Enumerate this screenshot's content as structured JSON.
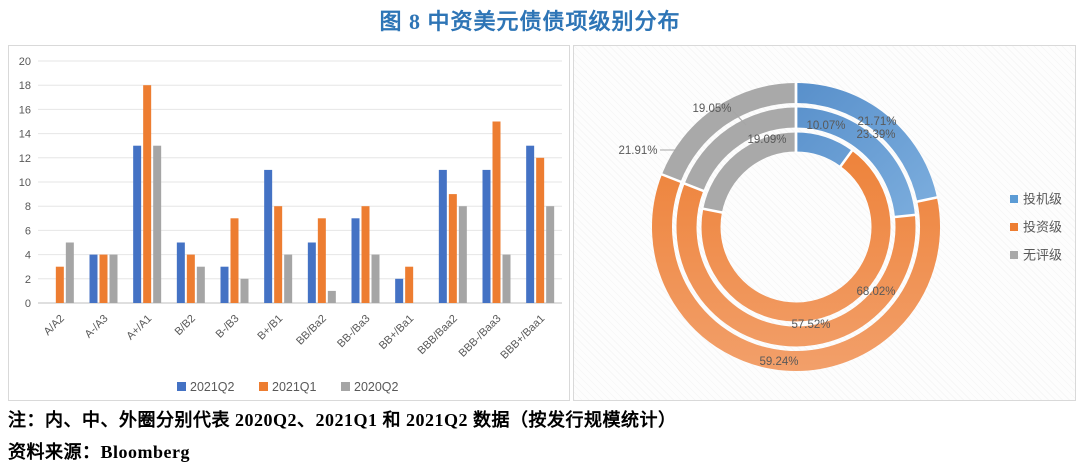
{
  "figure": {
    "title": "图 8 中资美元债债项级别分布",
    "note": "注：内、中、外圈分别代表 2020Q2、2021Q1 和 2021Q2 数据（按发行规模统计）",
    "source": "资料来源：Bloomberg"
  },
  "colors": {
    "title": "#2E75B6",
    "bar_blue": "#4472C4",
    "bar_orange": "#ED7D31",
    "bar_gray": "#A5A5A5",
    "donut_blue": "#5B9BD5",
    "donut_orange": "#ED7D31",
    "donut_orange_light": "#F2A06B",
    "donut_gray": "#A9A9A9",
    "axis_label": "#595959",
    "gridline": "#E6E6E6",
    "axis_line": "#BFBFBF",
    "leader_line": "#A6A6A6"
  },
  "chart_data": [
    {
      "type": "bar",
      "categories": [
        "A/A2",
        "A-/A3",
        "A+/A1",
        "B/B2",
        "B-/B3",
        "B+/B1",
        "BB/Ba2",
        "BB-/Ba3",
        "BB+/Ba1",
        "BBB/Baa2",
        "BBB-/Baa3",
        "BBB+/Baa1"
      ],
      "series": [
        {
          "name": "2021Q2",
          "color_key": "bar_blue",
          "values": [
            0,
            4,
            13,
            5,
            3,
            11,
            5,
            7,
            2,
            11,
            11,
            13
          ]
        },
        {
          "name": "2021Q1",
          "color_key": "bar_orange",
          "values": [
            3,
            4,
            18,
            4,
            7,
            8,
            7,
            8,
            3,
            9,
            15,
            12
          ]
        },
        {
          "name": "2020Q2",
          "color_key": "bar_gray",
          "values": [
            5,
            4,
            13,
            3,
            2,
            4,
            1,
            4,
            0,
            8,
            4,
            8
          ]
        }
      ],
      "ylim": [
        0,
        20
      ],
      "ytick_step": 2,
      "yticks": [
        0,
        2,
        4,
        6,
        8,
        10,
        12,
        14,
        16,
        18,
        20
      ],
      "grid": true,
      "legend_position": "bottom"
    },
    {
      "type": "pie",
      "subtype": "multi-ring-donut",
      "segment_names": [
        "投机级",
        "投资级",
        "无评级"
      ],
      "legend": [
        {
          "label": "投机级",
          "color_key": "donut_blue"
        },
        {
          "label": "投资级",
          "color_key": "donut_orange"
        },
        {
          "label": "无评级",
          "color_key": "donut_gray"
        }
      ],
      "rings": [
        {
          "name": "2020Q2",
          "position": "inner",
          "values": [
            10.07,
            68.02,
            21.91
          ],
          "labels": [
            "10.07%",
            "68.02%",
            "21.91%"
          ]
        },
        {
          "name": "2021Q1",
          "position": "middle",
          "values": [
            23.39,
            57.52,
            19.09
          ],
          "labels": [
            "23.39%",
            "57.52%",
            "19.09%"
          ]
        },
        {
          "name": "2021Q2",
          "position": "outer",
          "values": [
            21.71,
            59.24,
            19.05
          ],
          "labels": [
            "21.71%",
            "59.24%",
            "19.05%"
          ]
        }
      ],
      "legend_position": "right"
    }
  ]
}
